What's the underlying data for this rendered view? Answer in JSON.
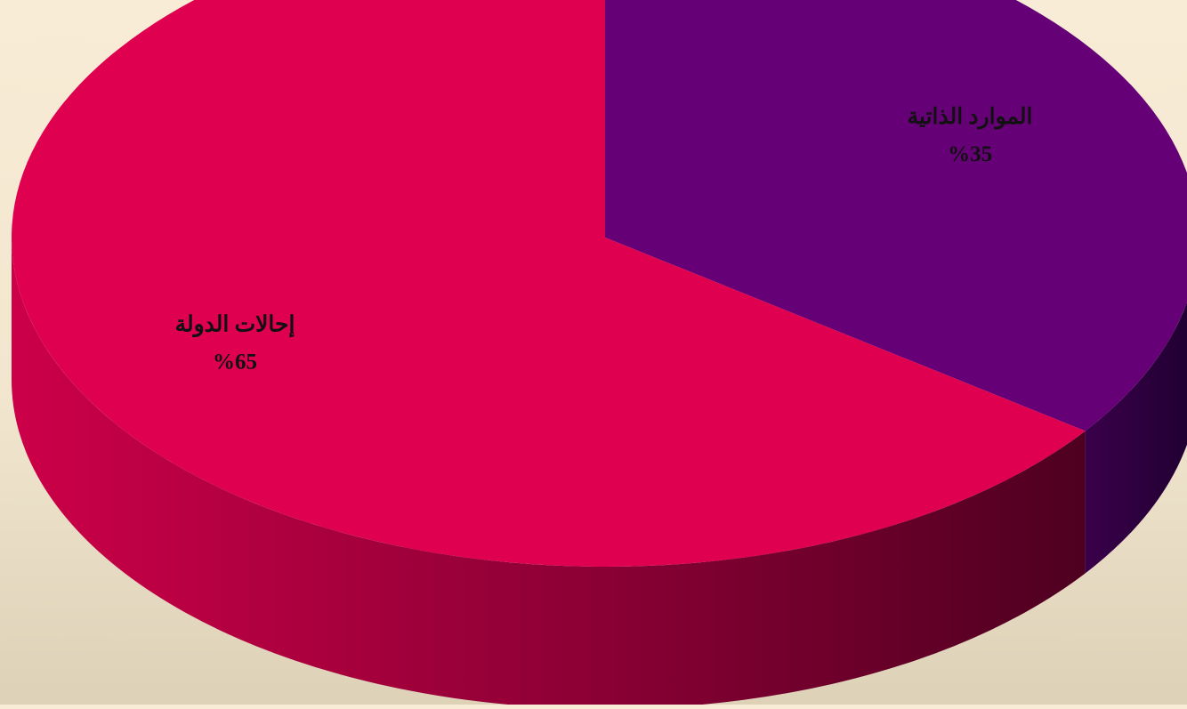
{
  "chart_data": {
    "type": "pie",
    "style": "3d",
    "slices": [
      {
        "label": "الموارد الذاتية",
        "value": 35,
        "value_label": "%35",
        "color": "#660077"
      },
      {
        "label": "إحالات الدولة",
        "value": 65,
        "value_label": "%65",
        "color": "#e00050"
      }
    ]
  },
  "colors": {
    "background_top": "#f8ecd6",
    "background_bottom": "#ddd2b8",
    "label_text": "#111111"
  }
}
